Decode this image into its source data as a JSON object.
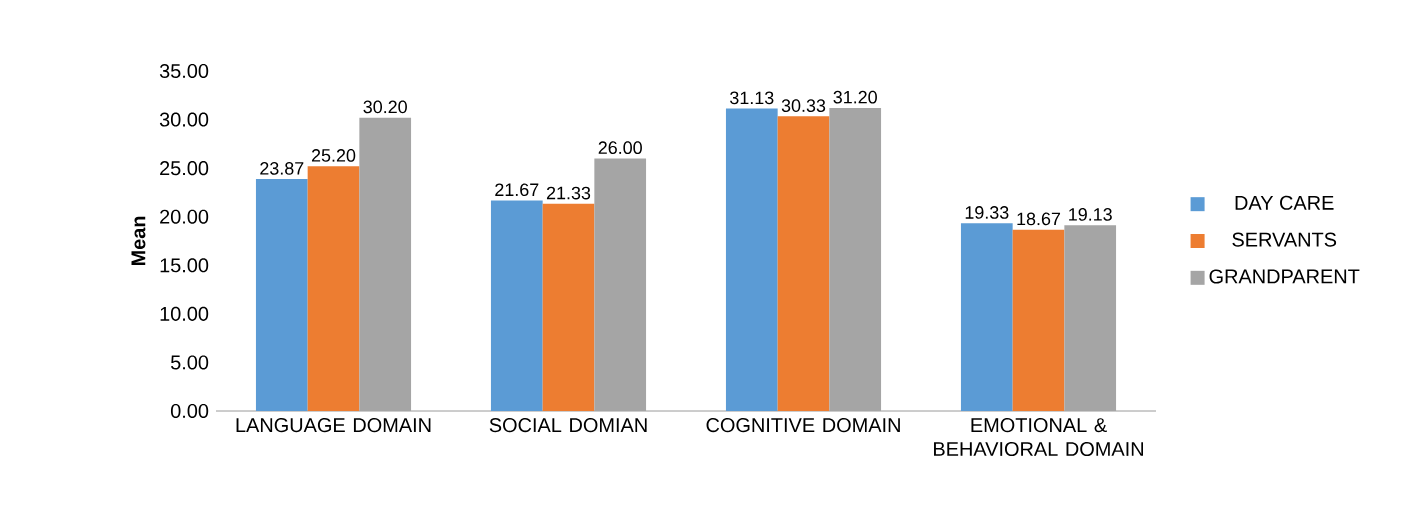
{
  "chart_data": {
    "type": "bar",
    "ylabel": "Mean",
    "categories": [
      "LANGUAGE DOMAIN",
      "SOCIAL DOMIAN",
      "COGNITIVE DOMAIN",
      "EMOTIONAL & BEHAVIORAL DOMAIN"
    ],
    "series": [
      {
        "name": "DAY CARE",
        "color": "#5b9bd5",
        "values": [
          23.87,
          21.67,
          31.13,
          19.33
        ],
        "value_labels": [
          "23.87",
          "21.67",
          "31.13",
          "19.33"
        ]
      },
      {
        "name": "SERVANTS",
        "color": "#ed7d31",
        "values": [
          25.2,
          21.33,
          30.33,
          18.67
        ],
        "value_labels": [
          "25.20",
          "21.33",
          "30.33",
          "18.67"
        ]
      },
      {
        "name": "GRANDPARENT",
        "color": "#a5a5a5",
        "values": [
          30.2,
          26.0,
          31.2,
          19.13
        ],
        "value_labels": [
          "30.20",
          "26.00",
          "31.20",
          "19.13"
        ]
      }
    ],
    "ylim": [
      0,
      35
    ],
    "yticks": [
      {
        "value": 0,
        "label": "0.00"
      },
      {
        "value": 5,
        "label": "5.00"
      },
      {
        "value": 10,
        "label": "10.00"
      },
      {
        "value": 15,
        "label": "15.00"
      },
      {
        "value": 20,
        "label": "20.00"
      },
      {
        "value": 25,
        "label": "25.00"
      },
      {
        "value": 30,
        "label": "30.00"
      },
      {
        "value": 35,
        "label": "35.00"
      }
    ],
    "grid": false,
    "legend": "right"
  }
}
